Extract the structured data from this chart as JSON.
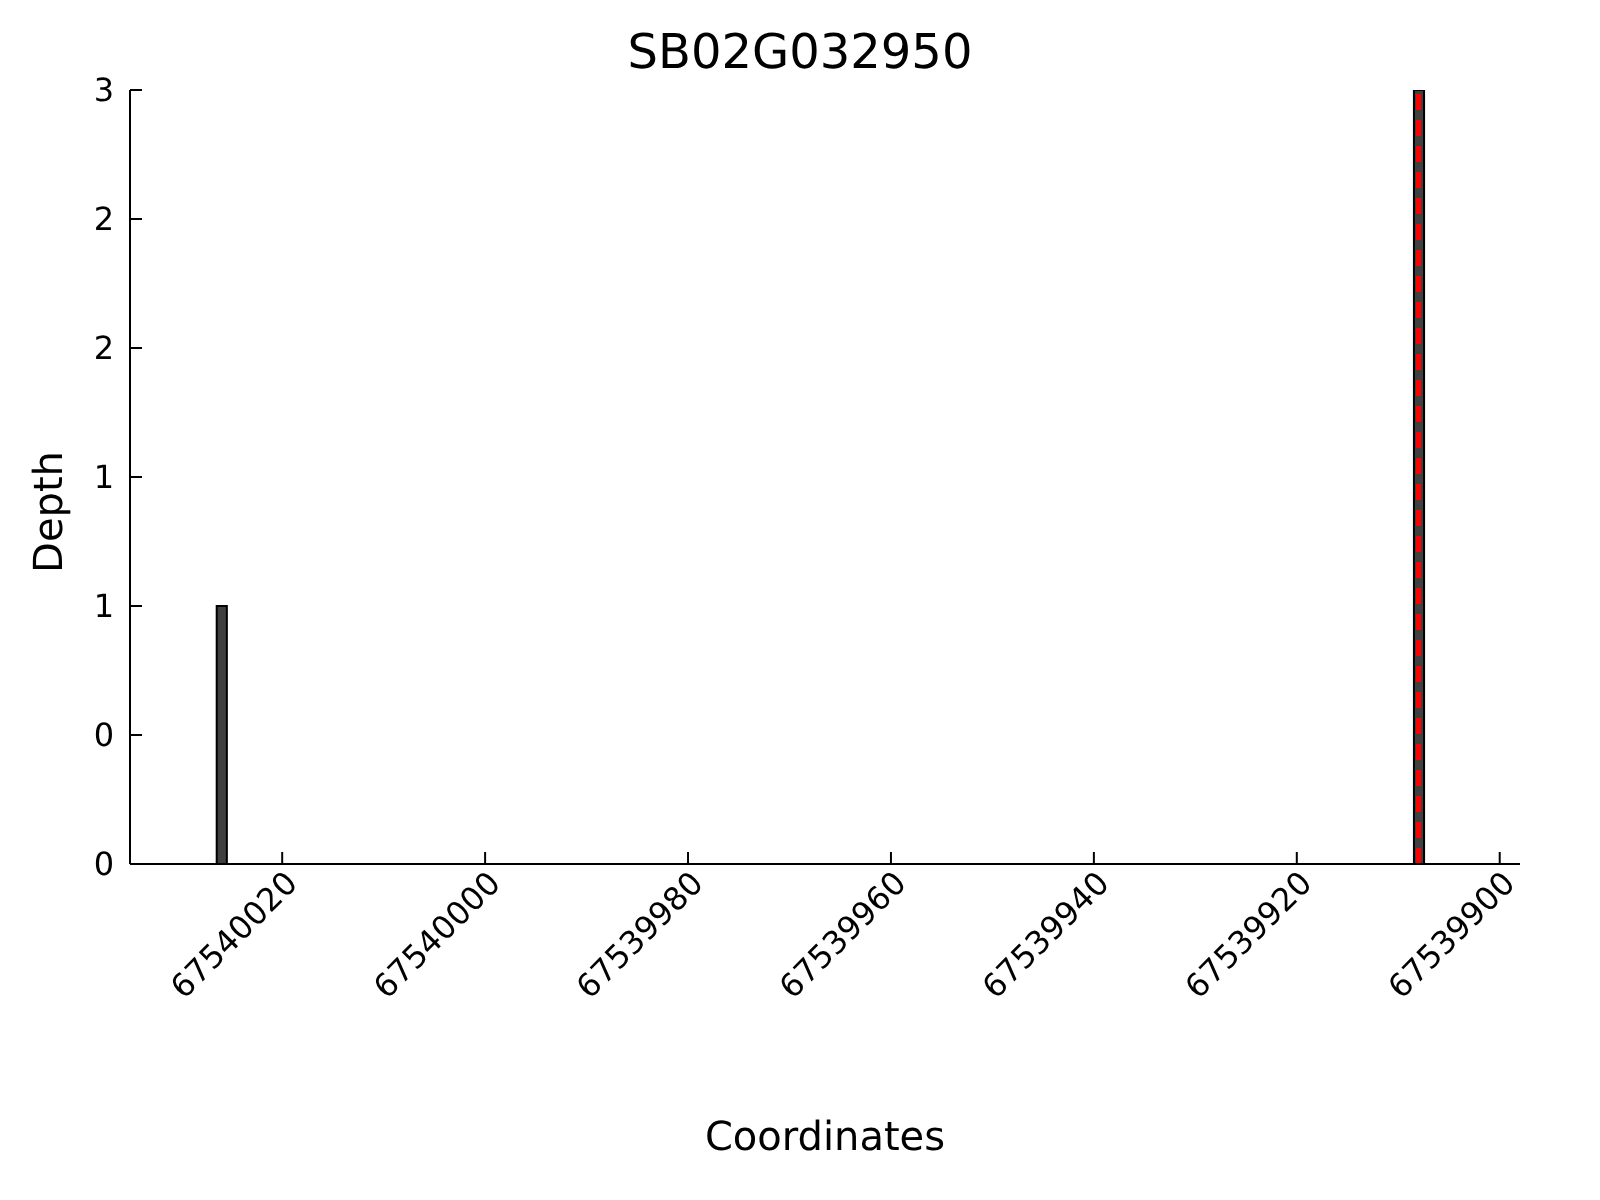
{
  "chart_data": {
    "type": "bar",
    "title": "SB02G032950",
    "xlabel": "Coordinates",
    "ylabel": "Depth",
    "x": [
      67540026,
      67539908
    ],
    "series": [
      {
        "color": "#404040",
        "values": [
          1,
          3
        ]
      }
    ],
    "xlim": [
      67540035,
      67539898
    ],
    "xticks": [
      67540020,
      67540000,
      67539980,
      67539960,
      67539940,
      67539920,
      67539900
    ],
    "ylim": [
      0,
      3
    ],
    "yticks": [
      0,
      {
        "value": 0.5,
        "label": "0"
      },
      1,
      {
        "value": 1.5,
        "label": "1"
      },
      2,
      {
        "value": 2.5,
        "label": "2"
      },
      3
    ],
    "ref_lines": [
      {
        "axis": "x",
        "value": 67539908,
        "color": "#ff0000",
        "line_style": "dashed"
      }
    ],
    "grid": false,
    "legend": false
  }
}
